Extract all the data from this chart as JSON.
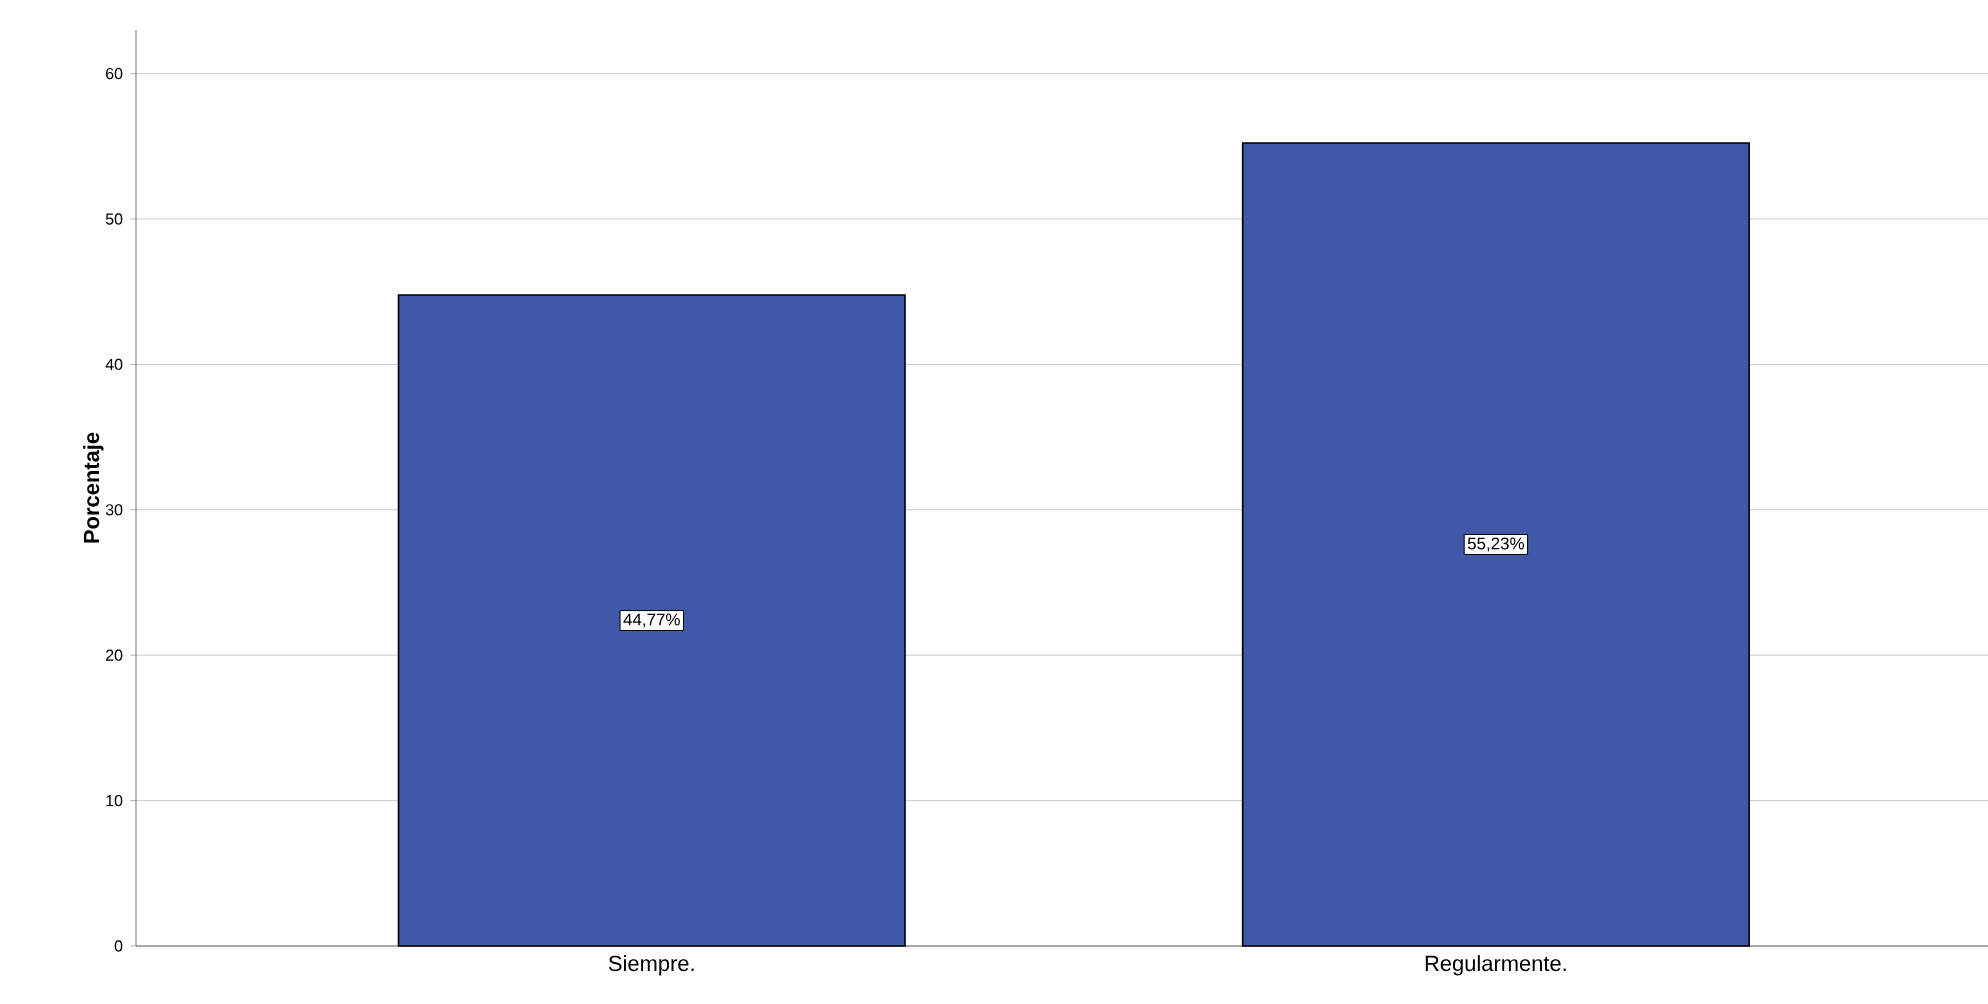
{
  "chart_data": {
    "type": "bar",
    "ylabel": "Porcentaje",
    "categories": [
      "Siempre.",
      "Regularmente."
    ],
    "values": [
      44.77,
      55.23
    ],
    "value_labels": [
      "44,77%",
      "55,23%"
    ],
    "color": "#3f58a7",
    "ylim": [
      0,
      63
    ],
    "yticks": [
      0,
      10,
      20,
      30,
      40,
      50,
      60
    ],
    "grid": "y"
  }
}
